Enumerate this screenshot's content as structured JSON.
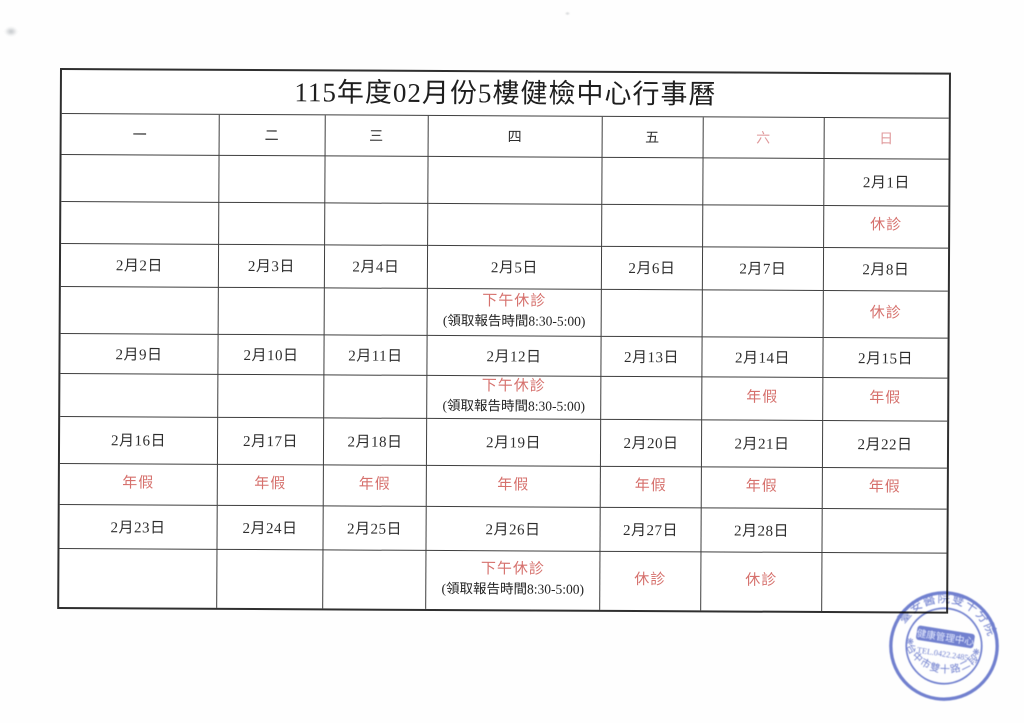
{
  "title": "115年度02月份5樓健檢中心行事曆",
  "weekday_header": [
    "一",
    "二",
    "三",
    "四",
    "五",
    "六",
    "日"
  ],
  "weekend_red_indices": [
    5,
    6
  ],
  "weeks": [
    {
      "dates": [
        "",
        "",
        "",
        "",
        "",
        "",
        "2月1日"
      ],
      "notes": [
        null,
        null,
        null,
        null,
        null,
        null,
        {
          "red": "休診"
        }
      ]
    },
    {
      "dates": [
        "2月2日",
        "2月3日",
        "2月4日",
        "2月5日",
        "2月6日",
        "2月7日",
        "2月8日"
      ],
      "notes": [
        null,
        null,
        null,
        {
          "red": "下午休診",
          "black": "(領取報告時間8:30-5:00)"
        },
        null,
        null,
        {
          "red": "休診"
        }
      ]
    },
    {
      "dates": [
        "2月9日",
        "2月10日",
        "2月11日",
        "2月12日",
        "2月13日",
        "2月14日",
        "2月15日"
      ],
      "notes": [
        null,
        null,
        null,
        {
          "red": "下午休診",
          "black": "(領取報告時間8:30-5:00)"
        },
        null,
        {
          "red": "年假"
        },
        {
          "red": "年假"
        }
      ]
    },
    {
      "dates": [
        "2月16日",
        "2月17日",
        "2月18日",
        "2月19日",
        "2月20日",
        "2月21日",
        "2月22日"
      ],
      "notes": [
        {
          "red": "年假"
        },
        {
          "red": "年假"
        },
        {
          "red": "年假"
        },
        {
          "red": "年假"
        },
        {
          "red": "年假"
        },
        {
          "red": "年假"
        },
        {
          "red": "年假"
        }
      ]
    },
    {
      "dates": [
        "2月23日",
        "2月24日",
        "2月25日",
        "2月26日",
        "2月27日",
        "2月28日",
        ""
      ],
      "notes": [
        null,
        null,
        null,
        {
          "red": "下午休診",
          "black": "(領取報告時間8:30-5:00)"
        },
        {
          "red": "休診"
        },
        {
          "red": "休診"
        },
        null
      ]
    }
  ],
  "stamp": {
    "arc_top": "臺安醫院雙十分院",
    "center_line1": "健康管理中心",
    "center_line2": "TEL.0422.2485",
    "arc_bottom": "台中市雙十路二段",
    "color": "#5265c5"
  },
  "colors": {
    "red_text": "#d6716d",
    "red_header": "#e09a9c",
    "ink": "#2d2d2d",
    "line": "#3e3e3e"
  }
}
